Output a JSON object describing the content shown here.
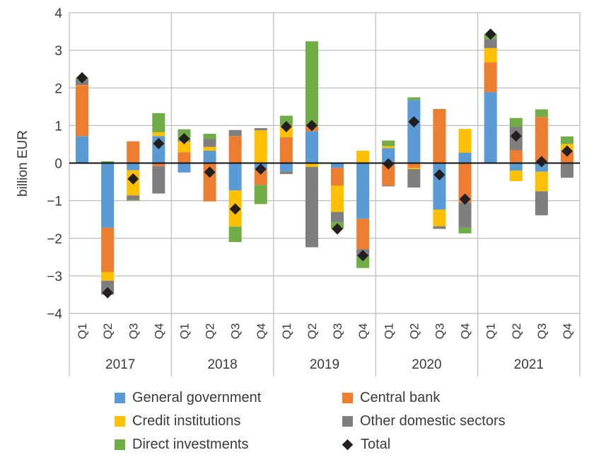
{
  "chart_data": {
    "type": "bar",
    "stacked": true,
    "title": "",
    "xlabel": "",
    "ylabel": "billion EUR",
    "ylim": [
      -4,
      4
    ],
    "yticks": [
      4,
      3,
      2,
      1,
      0,
      -1,
      -2,
      -3,
      -4
    ],
    "ytick_labels": [
      "4",
      "3",
      "2",
      "1",
      "0",
      "−1",
      "−2",
      "−3",
      "−4"
    ],
    "grid": true,
    "years": [
      "2017",
      "2018",
      "2019",
      "2020",
      "2021"
    ],
    "quarters": [
      "Q1",
      "Q2",
      "Q3",
      "Q4"
    ],
    "categories": [
      "2017 Q1",
      "2017 Q2",
      "2017 Q3",
      "2017 Q4",
      "2018 Q1",
      "2018 Q2",
      "2018 Q3",
      "2018 Q4",
      "2019 Q1",
      "2019 Q2",
      "2019 Q3",
      "2019 Q4",
      "2020 Q1",
      "2020 Q2",
      "2020 Q3",
      "2020 Q4",
      "2021 Q1",
      "2021 Q2",
      "2021 Q3",
      "2021 Q4"
    ],
    "series": [
      {
        "name": "General government",
        "color": "#5b9bd5",
        "values": [
          0.72,
          -1.72,
          -0.19,
          0.72,
          -0.25,
          0.33,
          -0.73,
          -0.17,
          -0.22,
          0.85,
          -0.13,
          -1.48,
          0.4,
          1.68,
          -1.24,
          0.28,
          1.89,
          -0.2,
          -0.23,
          0.0
        ]
      },
      {
        "name": "Central bank",
        "color": "#ed7d31",
        "values": [
          1.35,
          -1.18,
          0.58,
          -0.08,
          0.29,
          -1.02,
          0.72,
          -0.41,
          0.69,
          0.15,
          -0.47,
          -0.81,
          -0.6,
          -0.13,
          1.43,
          -1.05,
          0.79,
          0.34,
          1.23,
          0.32
        ]
      },
      {
        "name": "Credit institutions",
        "color": "#ffc000",
        "values": [
          0.01,
          -0.23,
          -0.67,
          0.1,
          0.28,
          0.1,
          -0.96,
          0.87,
          0.31,
          -0.1,
          -0.7,
          0.33,
          0.05,
          -0.03,
          -0.44,
          0.63,
          0.38,
          -0.28,
          -0.52,
          0.19
        ]
      },
      {
        "name": "Other domestic sectors",
        "color": "#7f7f7f",
        "values": [
          0.14,
          -0.37,
          -0.12,
          -0.73,
          0.0,
          0.21,
          0.16,
          0.06,
          -0.07,
          -2.14,
          -0.27,
          -0.2,
          -0.02,
          -0.49,
          -0.07,
          -0.67,
          0.24,
          0.63,
          -0.64,
          -0.39
        ]
      },
      {
        "name": "Direct investments",
        "color": "#70ad47",
        "values": [
          0.05,
          0.05,
          -0.02,
          0.51,
          0.33,
          0.14,
          -0.41,
          -0.51,
          0.26,
          2.24,
          -0.18,
          -0.3,
          0.15,
          0.07,
          0.01,
          -0.15,
          0.13,
          0.23,
          0.2,
          0.2
        ]
      }
    ],
    "total": {
      "name": "Total",
      "color": "#231f20",
      "values": [
        2.27,
        -3.45,
        -0.42,
        0.52,
        0.65,
        -0.24,
        -1.22,
        -0.16,
        0.97,
        1.0,
        -1.75,
        -2.46,
        -0.02,
        1.1,
        -0.31,
        -0.96,
        3.43,
        0.72,
        0.04,
        0.32
      ]
    },
    "legend_placement": "bottom"
  },
  "legend": {
    "items": [
      {
        "label": "General government",
        "color": "#5b9bd5",
        "marker": "square"
      },
      {
        "label": "Central bank",
        "color": "#ed7d31",
        "marker": "square"
      },
      {
        "label": "Credit institutions",
        "color": "#ffc000",
        "marker": "square"
      },
      {
        "label": "Other domestic sectors",
        "color": "#7f7f7f",
        "marker": "square"
      },
      {
        "label": "Direct investments",
        "color": "#70ad47",
        "marker": "square"
      },
      {
        "label": "Total",
        "color": "#231f20",
        "marker": "diamond"
      }
    ]
  }
}
